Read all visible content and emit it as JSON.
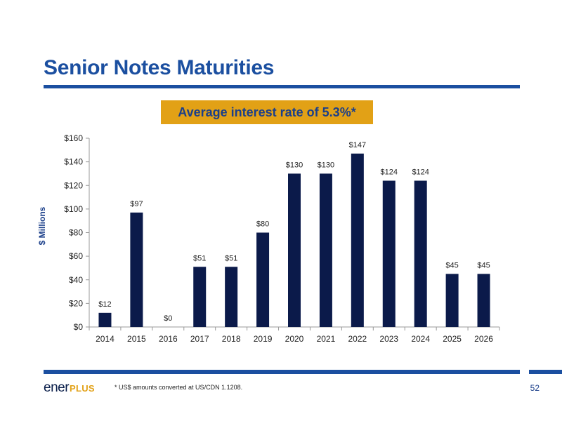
{
  "slide": {
    "title": "Senior Notes Maturities",
    "callout": "Average interest rate of 5.3%*",
    "footnote": "* US$ amounts converted at US/CDN 1.1208.",
    "page_number": "52",
    "logo": {
      "main": "ener",
      "accent": "PLUS"
    }
  },
  "colors": {
    "title": "#1b4fa0",
    "bar": "#0b1a4a",
    "callout_bg": "#e2a116",
    "callout_text": "#1b3f8a"
  },
  "chart_data": {
    "type": "bar",
    "categories": [
      "2014",
      "2015",
      "2016",
      "2017",
      "2018",
      "2019",
      "2020",
      "2021",
      "2022",
      "2023",
      "2024",
      "2025",
      "2026"
    ],
    "values": [
      12,
      97,
      0,
      51,
      51,
      80,
      130,
      130,
      147,
      124,
      124,
      45,
      45
    ],
    "data_labels": [
      "$12",
      "$97",
      "$0",
      "$51",
      "$51",
      "$80",
      "$130",
      "$130",
      "$147",
      "$124",
      "$124",
      "$45",
      "$45"
    ],
    "ylabel": "$ Millions",
    "xlabel": "",
    "ylim": [
      0,
      160
    ],
    "yticks": [
      0,
      20,
      40,
      60,
      80,
      100,
      120,
      140,
      160
    ],
    "ytick_labels": [
      "$0",
      "$20",
      "$40",
      "$60",
      "$80",
      "$100",
      "$120",
      "$140",
      "$160"
    ],
    "grid": false,
    "legend": "none"
  }
}
